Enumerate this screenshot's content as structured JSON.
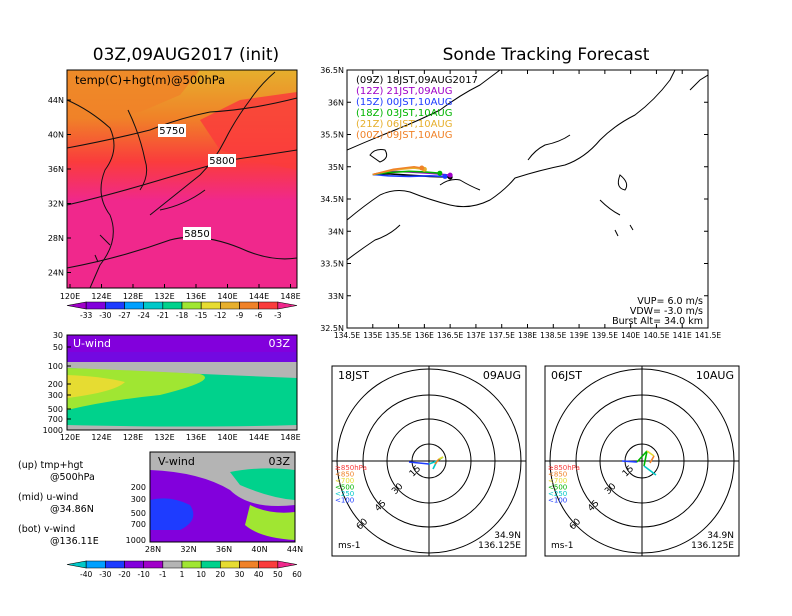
{
  "left_title": "03Z,09AUG2017 (init)",
  "right_title": "Sonde Tracking Forecast",
  "map500": {
    "label": "temp(C)+hgt(m)@500hPa",
    "lat_labels": [
      "44N",
      "40N",
      "36N",
      "32N",
      "28N",
      "24N"
    ],
    "lon_labels": [
      "120E",
      "124E",
      "128E",
      "132E",
      "136E",
      "140E",
      "144E",
      "148E"
    ],
    "contour_labels": [
      "5750",
      "5800",
      "5850"
    ]
  },
  "temp_colorbar": {
    "labels": [
      "-33",
      "-30",
      "-27",
      "-24",
      "-21",
      "-18",
      "-15",
      "-12",
      "-9",
      "-6",
      "-3"
    ],
    "colors": [
      "#a000c8",
      "#8200dc",
      "#1e3cff",
      "#00a0ff",
      "#00c8c8",
      "#00d28c",
      "#a0e632",
      "#e6dc32",
      "#e6af2d",
      "#f08228",
      "#fa3c3c",
      "#f0288c"
    ]
  },
  "uwind": {
    "label": "U-wind",
    "time": "03Z",
    "p_labels": [
      "30",
      "50",
      "100",
      "200",
      "300",
      "500",
      "700",
      "1000"
    ],
    "lon_labels": [
      "120E",
      "124E",
      "128E",
      "132E",
      "136E",
      "140E",
      "144E",
      "148E"
    ]
  },
  "vwind": {
    "label": "V-wind",
    "time": "03Z",
    "p_labels": [
      "200",
      "300",
      "500",
      "700",
      "1000"
    ],
    "lat_labels": [
      "28N",
      "32N",
      "36N",
      "40N",
      "44N"
    ]
  },
  "notes": [
    "(up) tmp+hgt",
    "@500hPa",
    "(mid) u-wind",
    "@34.86N",
    "(bot) v-wind",
    "@136.11E"
  ],
  "wind_colorbar": {
    "labels": [
      "-40",
      "-30",
      "-20",
      "-10",
      "-1",
      "1",
      "10",
      "20",
      "30",
      "40",
      "50",
      "60"
    ],
    "colors": [
      "#00c8c8",
      "#00a0ff",
      "#1e3cff",
      "#8200dc",
      "#a000c8",
      "#b4b4b4",
      "#a0e632",
      "#00d28c",
      "#e6dc32",
      "#f08228",
      "#fa3c3c",
      "#f0288c"
    ]
  },
  "track": {
    "legend": [
      {
        "text": "(09Z)  18JST,09AUG2017",
        "color": "#000000"
      },
      {
        "text": "(12Z)  21JST,09AUG",
        "color": "#a000c8"
      },
      {
        "text": "(15Z)  00JST,10AUG",
        "color": "#1e3cff"
      },
      {
        "text": "(18Z)  03JST,10AUG",
        "color": "#00b400"
      },
      {
        "text": "(21Z)  06JST,10AUG",
        "color": "#e6af2d"
      },
      {
        "text": "(00Z)  09JST,10AUG",
        "color": "#f08228"
      }
    ],
    "lat_labels": [
      "36.5N",
      "36N",
      "35.5N",
      "35N",
      "34.5N",
      "34N",
      "33.5N",
      "33N",
      "32.5N"
    ],
    "lon_labels": [
      "134.5E",
      "135E",
      "135.5E",
      "136E",
      "136.5E",
      "137E",
      "137.5E",
      "138E",
      "138.5E",
      "139E",
      "139.5E",
      "140E",
      "140.5E",
      "141E",
      "141.5E"
    ],
    "params": [
      "VUP=  6.0  m/s",
      "VDW= -3.0  m/s",
      "Burst Alt= 34.0  km"
    ]
  },
  "hodo1": {
    "left": "18JST",
    "right": "09AUG",
    "lat": "34.9N",
    "lon": "136.125E",
    "unit": "ms-1",
    "rings": [
      "15",
      "30",
      "45",
      "60"
    ]
  },
  "hodo2": {
    "left": "06JST",
    "right": "10AUG",
    "lat": "34.9N",
    "lon": "136.125E",
    "unit": "ms-1",
    "rings": [
      "15",
      "30",
      "45",
      "60"
    ]
  },
  "hodo_legend": [
    {
      "text": "≥850hPa",
      "color": "#fa3c3c"
    },
    {
      "text": "<850",
      "color": "#f08228"
    },
    {
      "text": "<700",
      "color": "#e6dc32"
    },
    {
      "text": "<500",
      "color": "#00b400"
    },
    {
      "text": "<250",
      "color": "#00c8c8"
    },
    {
      "text": "<100",
      "color": "#1e3cff"
    }
  ],
  "chart_data": [
    {
      "type": "heatmap",
      "title": "03Z,09AUG2017 (init)",
      "label": "temp(C)+hgt(m)@500hPa",
      "xlim": [
        120,
        150
      ],
      "ylim": [
        22,
        47
      ],
      "contours": [
        5750,
        5800,
        5850
      ]
    },
    {
      "type": "heatmap",
      "label": "U-wind",
      "xlim": [
        120,
        150
      ],
      "ylim": [
        1000,
        30
      ]
    },
    {
      "type": "heatmap",
      "label": "V-wind",
      "xlim": [
        28,
        44
      ],
      "ylim": [
        1000,
        150
      ]
    },
    {
      "type": "line",
      "title": "Sonde Tracking Forecast",
      "xlim": [
        134.5,
        141.5
      ],
      "ylim": [
        32.5,
        36.5
      ],
      "series": [
        {
          "name": "(09Z)  18JST,09AUG2017",
          "x": [
            135.0,
            135.3,
            135.7,
            136.1,
            136.5
          ],
          "y": [
            34.88,
            34.89,
            34.87,
            34.85,
            34.84
          ]
        },
        {
          "name": "(12Z)  21JST,09AUG",
          "x": [
            135.0,
            135.3,
            135.7,
            136.1,
            136.5
          ],
          "y": [
            34.88,
            34.93,
            34.92,
            34.9,
            34.87
          ]
        },
        {
          "name": "(15Z)  00JST,10AUG",
          "x": [
            135.0,
            135.3,
            135.7,
            136.1,
            136.4
          ],
          "y": [
            34.88,
            34.86,
            34.85,
            34.86,
            34.85
          ]
        },
        {
          "name": "(18Z)  03JST,10AUG",
          "x": [
            135.0,
            135.3,
            135.7,
            136.0,
            136.3
          ],
          "y": [
            34.88,
            34.91,
            34.93,
            34.92,
            34.9
          ]
        },
        {
          "name": "(21Z)  06JST,10AUG",
          "x": [
            135.0,
            135.4,
            135.8,
            136.0
          ],
          "y": [
            34.88,
            34.95,
            34.98,
            34.96
          ]
        },
        {
          "name": "(00Z)  09JST,10AUG",
          "x": [
            135.0,
            135.4,
            135.8,
            135.95
          ],
          "y": [
            34.88,
            34.96,
            35.0,
            34.98
          ]
        }
      ]
    }
  ]
}
